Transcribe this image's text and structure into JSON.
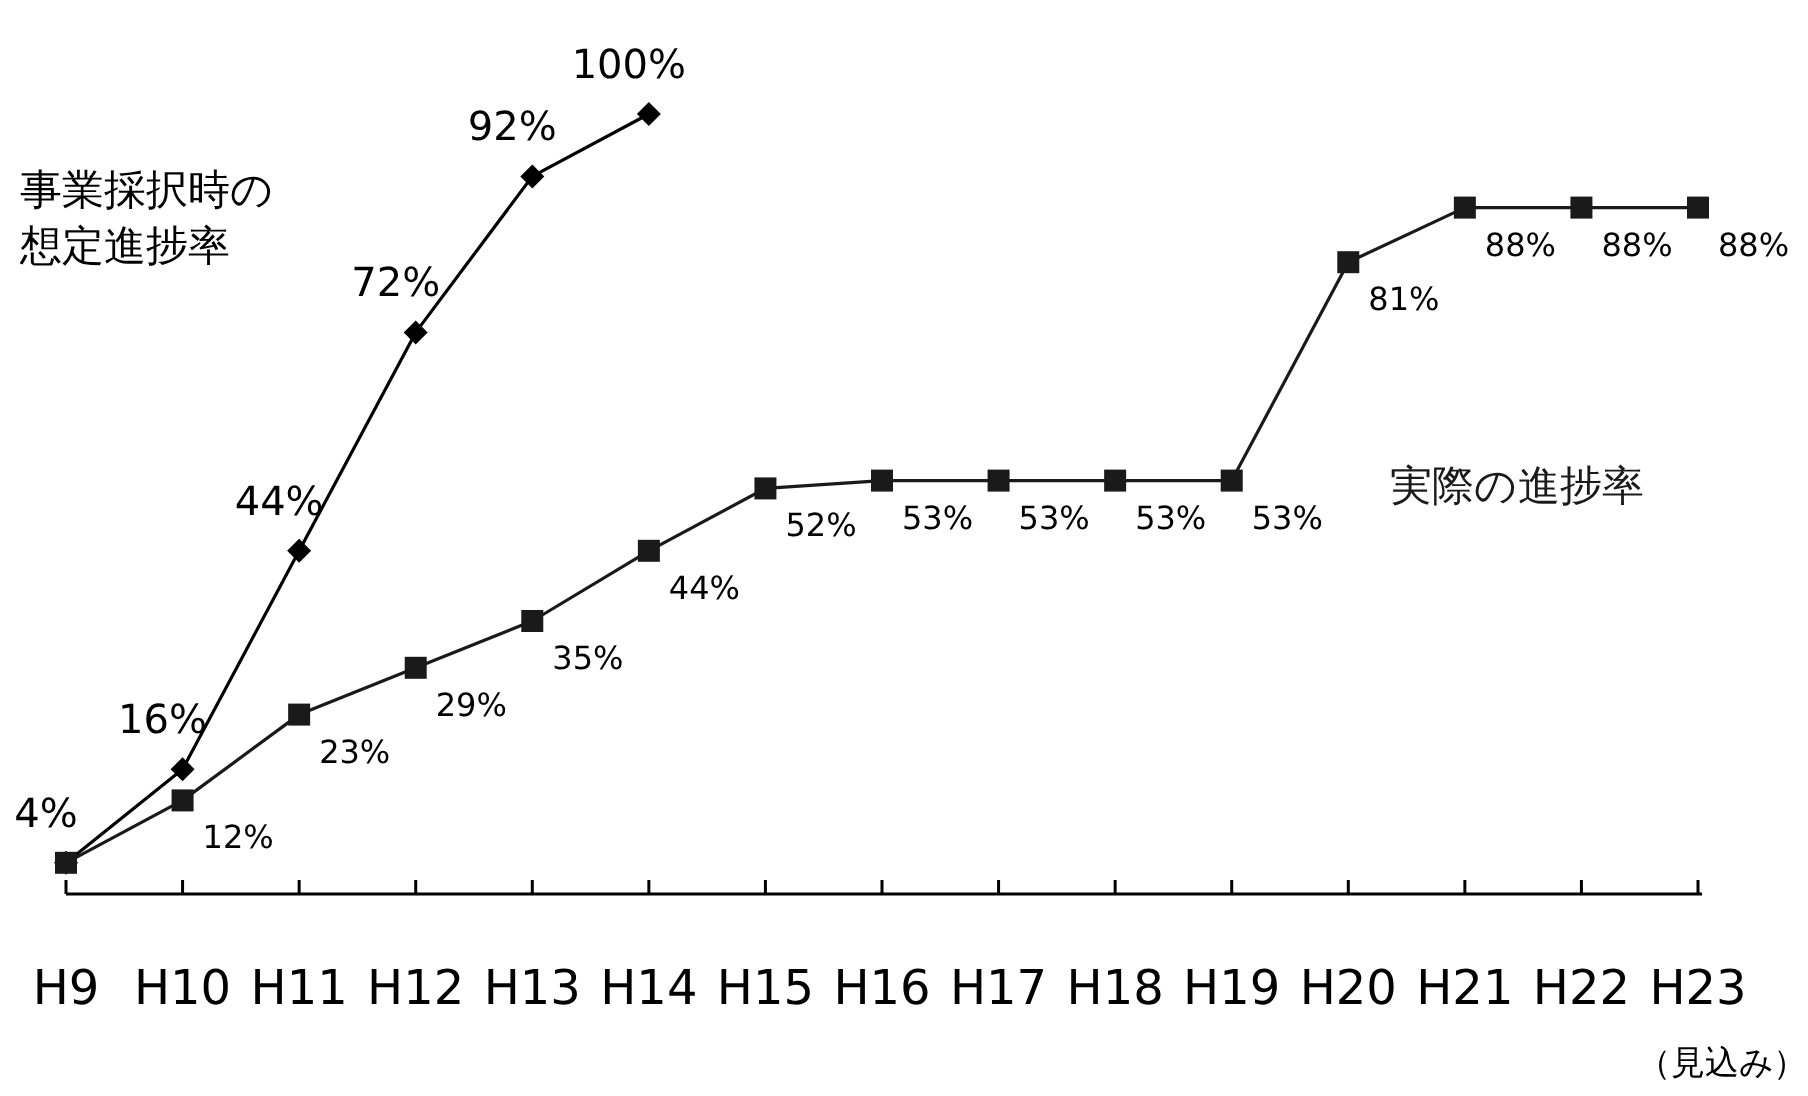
{
  "chart_data": {
    "type": "line",
    "relative": false,
    "categories": [
      "H9",
      "H10",
      "H11",
      "H12",
      "H13",
      "H14",
      "H15",
      "H16",
      "H17",
      "H18",
      "H19",
      "H20",
      "H21",
      "H22",
      "H23"
    ],
    "series": [
      {
        "name": "事業採択時の想定進捗率",
        "color": "#000000",
        "marker": "diamond",
        "values": [
          4,
          16,
          44,
          72,
          92,
          100,
          null,
          null,
          null,
          null,
          null,
          null,
          null,
          null,
          null
        ],
        "value_labels": [
          "4%",
          "16%",
          "44%",
          "72%",
          "92%",
          "100%",
          null,
          null,
          null,
          null,
          null,
          null,
          null,
          null,
          null
        ]
      },
      {
        "name": "実際の進捗率",
        "color": "#1a1a1a",
        "marker": "square",
        "values": [
          4,
          12,
          23,
          29,
          35,
          44,
          52,
          53,
          53,
          53,
          53,
          81,
          88,
          88,
          88
        ],
        "value_labels": [
          null,
          "12%",
          "23%",
          "29%",
          "35%",
          "44%",
          "52%",
          "53%",
          "53%",
          "53%",
          "53%",
          "81%",
          "88%",
          "88%",
          "88%"
        ]
      }
    ],
    "annotations": [
      "（見込み）"
    ],
    "legend": false
  }
}
